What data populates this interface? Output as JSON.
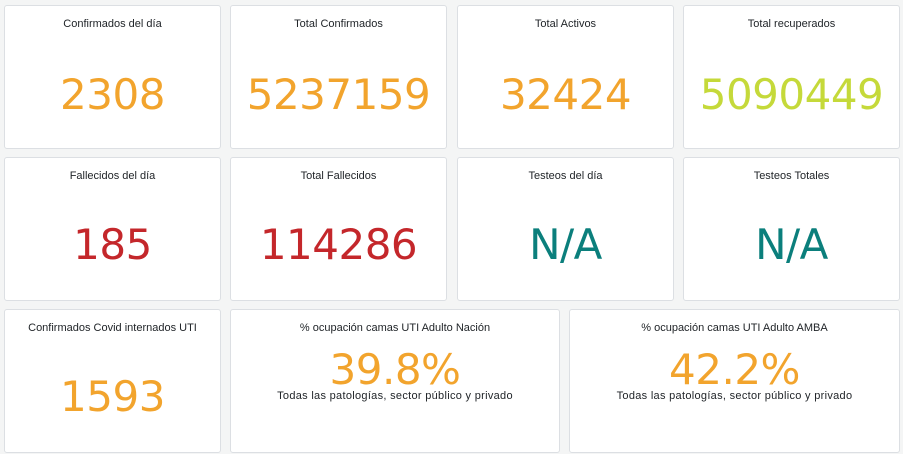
{
  "colors": {
    "confirmed": "#f2a42d",
    "recovered": "#c5d93a",
    "deaths": "#c4272b",
    "tests": "#0b7f7c",
    "card_background": "#ffffff",
    "page_background": "#f4f5f5"
  },
  "row1": {
    "confirmados_dia": {
      "title": "Confirmados del día",
      "value": "2308"
    },
    "total_confirmados": {
      "title": "Total Confirmados",
      "value": "5237159"
    },
    "total_activos": {
      "title": "Total Activos",
      "value": "32424"
    },
    "total_recuperados": {
      "title": "Total recuperados",
      "value": "5090449"
    }
  },
  "row2": {
    "fallecidos_dia": {
      "title": "Fallecidos del día",
      "value": "185"
    },
    "total_fallecidos": {
      "title": "Total Fallecidos",
      "value": "114286"
    },
    "testeos_dia": {
      "title": "Testeos del día",
      "value": "N/A"
    },
    "testeos_totales": {
      "title": "Testeos Totales",
      "value": "N/A"
    }
  },
  "row3": {
    "internados_uti": {
      "title": "Confirmados Covid internados UTI",
      "value": "1593"
    },
    "ocupacion_nacion": {
      "title": "% ocupación camas UTI Adulto Nación",
      "value": "39.8%",
      "subtitle": "Todas las patologías, sector público y privado"
    },
    "ocupacion_amba": {
      "title": "% ocupación camas UTI Adulto AMBA",
      "value": "42.2%",
      "subtitle": "Todas las patologías, sector público y privado"
    }
  }
}
